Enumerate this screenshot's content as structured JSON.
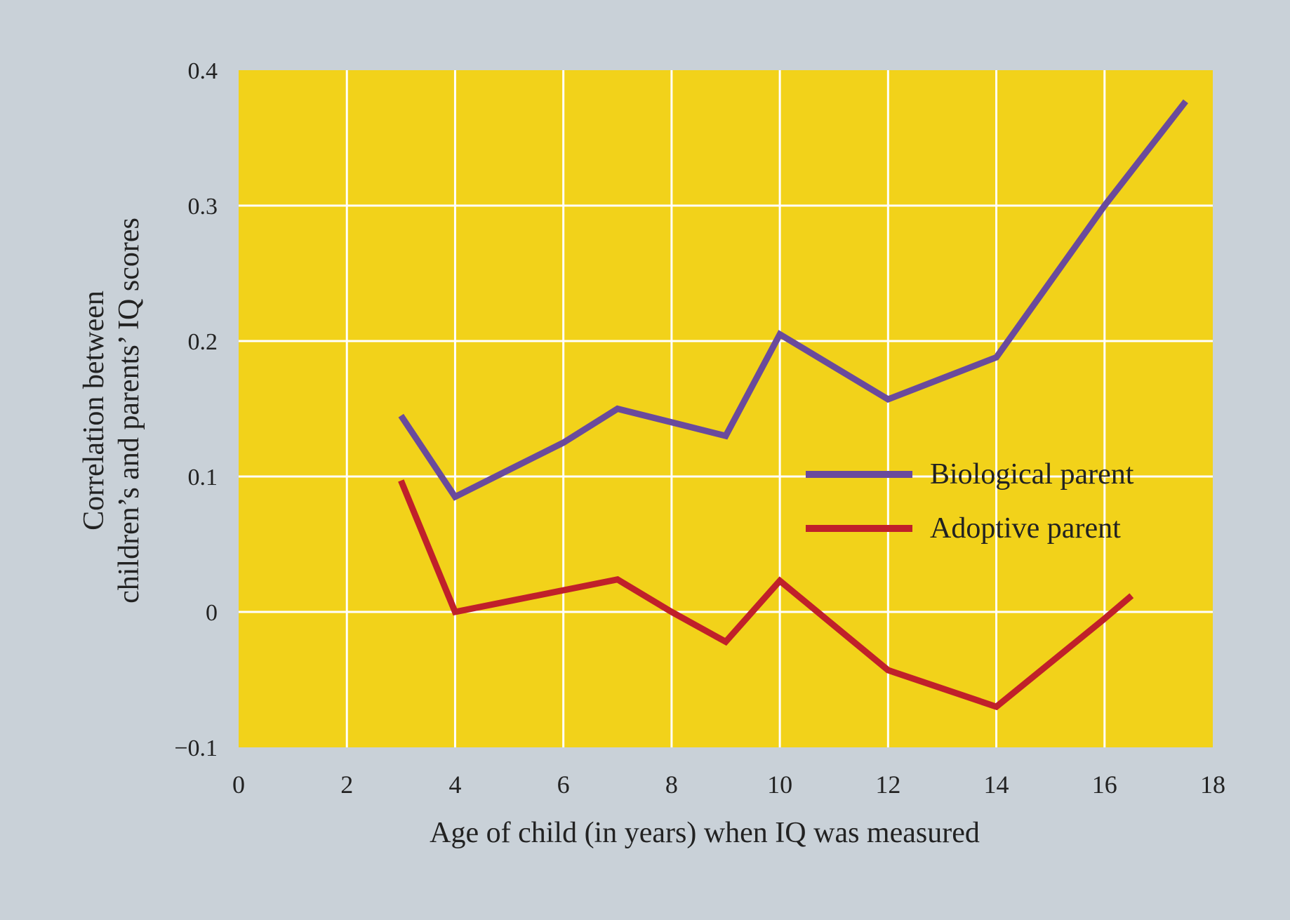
{
  "chart_data": {
    "type": "line",
    "title": "",
    "xlabel": "Age of child (in years) when IQ was measured",
    "ylabel_line1": "Correlation between",
    "ylabel_line2": "children’s and parents’ IQ scores",
    "xlim": [
      0,
      18
    ],
    "ylim": [
      -0.1,
      0.4
    ],
    "x_ticks": [
      0,
      2,
      4,
      6,
      8,
      10,
      12,
      14,
      16,
      18
    ],
    "x_tick_labels": [
      "0",
      "2",
      "4",
      "6",
      "8",
      "10",
      "12",
      "14",
      "16",
      "18"
    ],
    "y_ticks": [
      -0.1,
      0,
      0.1,
      0.2,
      0.3,
      0.4
    ],
    "y_tick_labels": [
      "−0.1",
      "0",
      "0.1",
      "0.2",
      "0.3",
      "0.4"
    ],
    "grid": true,
    "legend_position": "center-right",
    "colors": {
      "plot_background": "#f2d21a",
      "grid": "#ffffff",
      "page_background": "#c9d1d8"
    },
    "series": [
      {
        "name": "Biological parent",
        "color": "#6a4a9c",
        "x": [
          3,
          4,
          5,
          6,
          7,
          8,
          9,
          10,
          12,
          14,
          16,
          17.5
        ],
        "y": [
          0.145,
          0.085,
          0.105,
          0.125,
          0.15,
          0.14,
          0.13,
          0.205,
          0.157,
          0.188,
          0.3,
          0.377
        ]
      },
      {
        "name": "Adoptive parent",
        "color": "#c0202a",
        "x": [
          3,
          4,
          5,
          6,
          7,
          8,
          9,
          10,
          12,
          14,
          16,
          16.5
        ],
        "y": [
          0.097,
          0.0,
          0.008,
          0.016,
          0.024,
          0.0,
          -0.022,
          0.023,
          -0.043,
          -0.07,
          -0.005,
          0.012
        ]
      }
    ]
  }
}
